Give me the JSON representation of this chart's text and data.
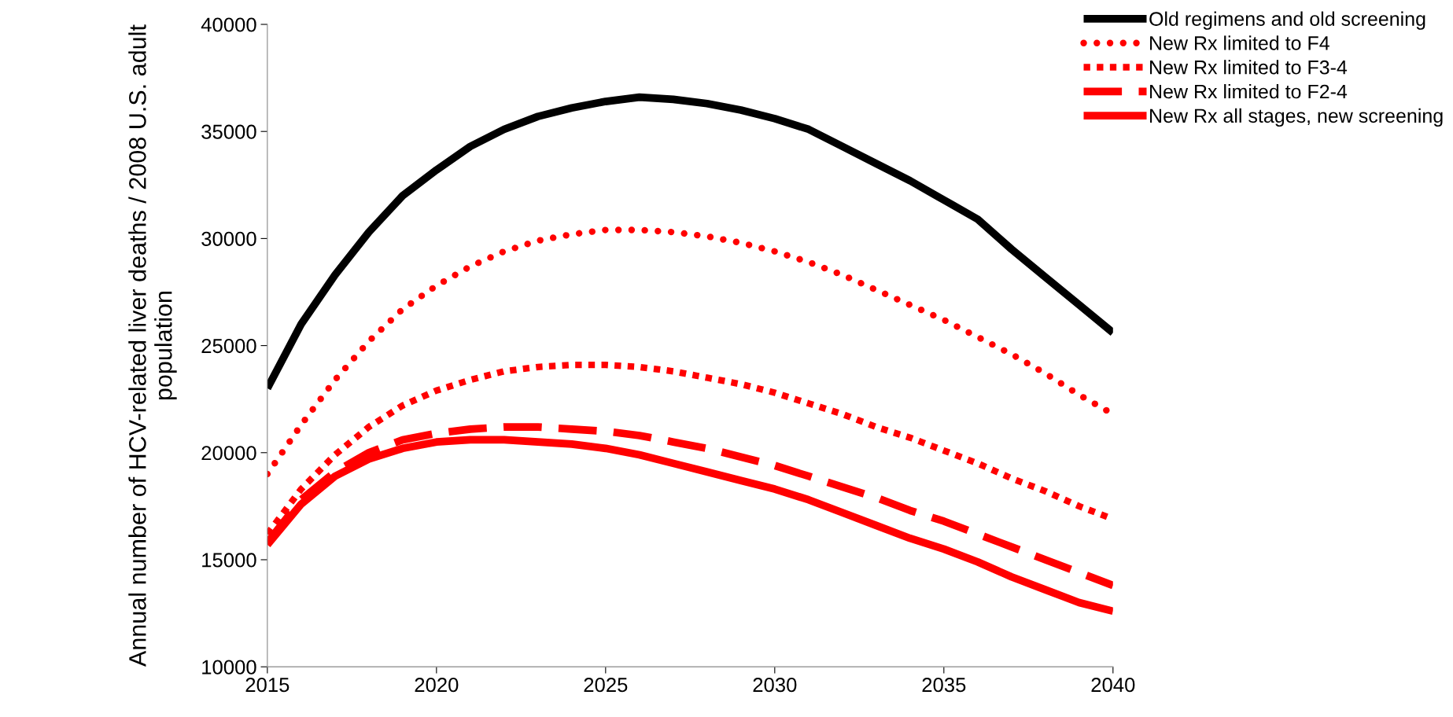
{
  "chart_data": {
    "type": "line",
    "ylabel": "Annual number of HCV-related liver deaths / 2008 U.S. adult population",
    "x": [
      2015,
      2016,
      2017,
      2018,
      2019,
      2020,
      2021,
      2022,
      2023,
      2024,
      2025,
      2026,
      2027,
      2028,
      2029,
      2030,
      2031,
      2032,
      2033,
      2034,
      2035,
      2036,
      2037,
      2038,
      2039,
      2040
    ],
    "xlim": [
      2015,
      2040
    ],
    "xticks": [
      2015,
      2020,
      2025,
      2030,
      2035,
      2040
    ],
    "ylim": [
      10000,
      40000
    ],
    "yticks": [
      10000,
      15000,
      20000,
      25000,
      30000,
      35000,
      40000
    ],
    "grid": false,
    "legend": "top right",
    "series": [
      {
        "name": "Old regimens and old screening",
        "color": "#000000",
        "line_style": "solid",
        "values": [
          23000,
          26000,
          28300,
          30300,
          32000,
          33200,
          34300,
          35100,
          35700,
          36100,
          36400,
          36600,
          36500,
          36300,
          36000,
          35600,
          35100,
          34300,
          33500,
          32700,
          31800,
          30900,
          29500,
          28200,
          26900,
          25600
        ]
      },
      {
        "name": "New Rx limited to F4",
        "color": "#ff0000",
        "line_style": "dotted",
        "values": [
          19000,
          21300,
          23400,
          25200,
          26700,
          27800,
          28700,
          29400,
          29900,
          30200,
          30400,
          30400,
          30300,
          30100,
          29800,
          29400,
          28900,
          28300,
          27600,
          26900,
          26200,
          25400,
          24600,
          23700,
          22700,
          21800
        ]
      },
      {
        "name": "New Rx limited to F3-4",
        "color": "#ff0000",
        "line_style": "dotted",
        "values": [
          16200,
          18300,
          19900,
          21200,
          22200,
          22900,
          23400,
          23800,
          24000,
          24100,
          24100,
          24000,
          23800,
          23500,
          23200,
          22800,
          22300,
          21800,
          21200,
          20700,
          20100,
          19500,
          18800,
          18200,
          17500,
          16900
        ]
      },
      {
        "name": "New Rx limited to F2-4",
        "color": "#ff0000",
        "line_style": "dashed",
        "values": [
          15800,
          17800,
          19100,
          20000,
          20600,
          20900,
          21100,
          21200,
          21200,
          21100,
          21000,
          20800,
          20500,
          20200,
          19800,
          19400,
          18900,
          18400,
          17900,
          17300,
          16800,
          16200,
          15600,
          15000,
          14400,
          13800
        ]
      },
      {
        "name": "New Rx all stages, new screening",
        "color": "#ff0000",
        "line_style": "solid",
        "values": [
          15700,
          17600,
          18900,
          19700,
          20200,
          20500,
          20600,
          20600,
          20500,
          20400,
          20200,
          19900,
          19500,
          19100,
          18700,
          18300,
          17800,
          17200,
          16600,
          16000,
          15500,
          14900,
          14200,
          13600,
          13000,
          12600
        ]
      }
    ]
  }
}
